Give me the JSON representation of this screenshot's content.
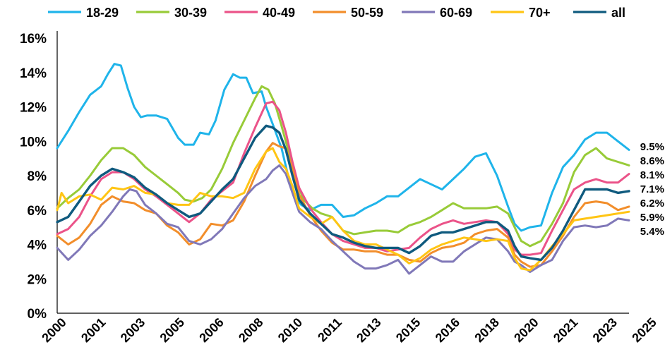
{
  "chart_data": {
    "type": "line",
    "title": "",
    "xlabel": "",
    "ylabel": "",
    "ylim": [
      0,
      16
    ],
    "xlim": [
      2000,
      2026
    ],
    "y_ticks": [
      "0%",
      "2%",
      "4%",
      "6%",
      "8%",
      "10%",
      "12%",
      "14%",
      "16%"
    ],
    "x_ticks": [
      "2000",
      "2001",
      "2003",
      "2005",
      "2006",
      "2008",
      "2010",
      "2011",
      "2013",
      "2015",
      "2016",
      "2018",
      "2020",
      "2021",
      "2023",
      "2025"
    ],
    "grid": false,
    "legend_position": "top",
    "series": [
      {
        "name": "18-29",
        "color": "#1fb4ea",
        "end_label": "9.5%",
        "x": [
          2000.0,
          2000.5,
          2001.0,
          2001.5,
          2002.0,
          2002.3,
          2002.6,
          2002.9,
          2003.2,
          2003.5,
          2003.8,
          2004.1,
          2004.5,
          2005.0,
          2005.5,
          2005.8,
          2006.2,
          2006.5,
          2006.9,
          2007.2,
          2007.6,
          2008.0,
          2008.3,
          2008.6,
          2008.9,
          2009.3,
          2009.5,
          2009.8,
          2010.2,
          2010.5,
          2010.8,
          2011.1,
          2011.5,
          2012.0,
          2012.5,
          2013.0,
          2013.5,
          2014.0,
          2014.5,
          2015.0,
          2015.5,
          2016.0,
          2016.5,
          2017.0,
          2017.5,
          2018.0,
          2018.5,
          2019.0,
          2019.5,
          2020.0,
          2020.5,
          2020.8,
          2021.1,
          2021.5,
          2022.0,
          2022.5,
          2023.0,
          2023.5,
          2024.0,
          2024.5,
          2025.0,
          2025.5,
          2026.0
        ],
        "y": [
          9.6,
          10.6,
          11.7,
          12.7,
          13.2,
          13.9,
          14.5,
          14.4,
          13.1,
          12.0,
          11.4,
          11.5,
          11.5,
          11.3,
          10.2,
          9.8,
          9.8,
          10.5,
          10.4,
          11.2,
          13.0,
          13.9,
          13.7,
          13.7,
          12.8,
          12.9,
          12.0,
          11.0,
          9.6,
          8.0,
          6.8,
          6.3,
          6.0,
          6.3,
          6.3,
          5.6,
          5.7,
          6.1,
          6.4,
          6.8,
          6.8,
          7.3,
          7.8,
          7.5,
          7.2,
          7.8,
          8.4,
          9.1,
          9.3,
          8.0,
          6.2,
          5.2,
          4.8,
          5.0,
          5.1,
          7.0,
          8.5,
          9.2,
          10.1,
          10.5,
          10.5,
          10.0,
          9.5
        ]
      },
      {
        "name": "30-39",
        "color": "#98cb38",
        "end_label": "8.6%",
        "x": [
          2000.0,
          2000.5,
          2001.0,
          2001.5,
          2002.0,
          2002.5,
          2003.0,
          2003.5,
          2004.0,
          2004.5,
          2005.0,
          2005.5,
          2005.8,
          2006.2,
          2006.6,
          2007.0,
          2007.5,
          2008.0,
          2008.5,
          2009.0,
          2009.3,
          2009.6,
          2009.9,
          2010.2,
          2010.5,
          2010.8,
          2011.2,
          2011.6,
          2012.0,
          2012.5,
          2013.0,
          2013.5,
          2014.0,
          2014.5,
          2015.0,
          2015.5,
          2016.0,
          2016.5,
          2017.0,
          2017.5,
          2018.0,
          2018.5,
          2019.0,
          2019.5,
          2020.0,
          2020.5,
          2020.8,
          2021.1,
          2021.5,
          2022.0,
          2022.5,
          2023.0,
          2023.5,
          2024.0,
          2024.5,
          2025.0,
          2025.5,
          2026.0
        ],
        "y": [
          6.1,
          6.7,
          7.2,
          8.0,
          8.9,
          9.6,
          9.6,
          9.2,
          8.5,
          8.0,
          7.5,
          7.0,
          6.6,
          6.5,
          6.7,
          7.2,
          8.4,
          9.9,
          11.2,
          12.5,
          13.2,
          13.0,
          12.2,
          10.9,
          9.5,
          8.0,
          6.6,
          6.1,
          5.8,
          5.6,
          4.8,
          4.6,
          4.7,
          4.8,
          4.8,
          4.7,
          5.1,
          5.3,
          5.6,
          6.0,
          6.4,
          6.1,
          6.1,
          6.1,
          6.2,
          5.8,
          5.0,
          4.2,
          3.9,
          4.2,
          5.2,
          6.4,
          8.2,
          9.2,
          9.6,
          9.0,
          8.8,
          8.6
        ]
      },
      {
        "name": "40-49",
        "color": "#eb5389",
        "end_label": "8.1%",
        "x": [
          2000.0,
          2000.5,
          2001.0,
          2001.5,
          2002.0,
          2002.5,
          2003.0,
          2003.5,
          2004.0,
          2004.5,
          2005.0,
          2005.5,
          2006.0,
          2006.5,
          2007.0,
          2007.5,
          2008.0,
          2008.5,
          2009.0,
          2009.5,
          2009.8,
          2010.1,
          2010.4,
          2010.7,
          2011.0,
          2011.5,
          2012.0,
          2012.5,
          2013.0,
          2013.5,
          2014.0,
          2014.5,
          2015.0,
          2015.5,
          2016.0,
          2016.5,
          2017.0,
          2017.5,
          2018.0,
          2018.5,
          2019.0,
          2019.5,
          2020.0,
          2020.5,
          2020.8,
          2021.1,
          2021.5,
          2022.0,
          2022.5,
          2023.0,
          2023.5,
          2024.0,
          2024.5,
          2025.0,
          2025.5,
          2026.0
        ],
        "y": [
          4.6,
          4.9,
          5.6,
          6.8,
          7.8,
          8.2,
          8.2,
          7.8,
          7.2,
          6.8,
          6.3,
          5.8,
          5.3,
          5.8,
          6.6,
          7.1,
          7.6,
          9.3,
          10.8,
          12.2,
          12.3,
          11.8,
          10.5,
          8.8,
          7.3,
          6.1,
          5.3,
          4.6,
          4.2,
          4.0,
          3.8,
          3.8,
          3.6,
          3.7,
          3.8,
          4.4,
          4.9,
          5.2,
          5.4,
          5.2,
          5.3,
          5.4,
          5.3,
          4.6,
          3.7,
          3.4,
          3.4,
          3.5,
          4.8,
          6.0,
          7.2,
          7.6,
          7.8,
          7.6,
          7.6,
          8.1
        ]
      },
      {
        "name": "50-59",
        "color": "#f28e2b",
        "end_label": "6.2%",
        "x": [
          2000.0,
          2000.5,
          2001.0,
          2001.5,
          2002.0,
          2002.5,
          2003.0,
          2003.5,
          2004.0,
          2004.5,
          2005.0,
          2005.5,
          2006.0,
          2006.5,
          2007.0,
          2007.5,
          2008.0,
          2008.5,
          2009.0,
          2009.5,
          2009.8,
          2010.1,
          2010.4,
          2010.7,
          2011.0,
          2011.5,
          2012.0,
          2012.5,
          2013.0,
          2013.5,
          2014.0,
          2014.5,
          2015.0,
          2015.5,
          2016.0,
          2016.5,
          2017.0,
          2017.5,
          2018.0,
          2018.5,
          2019.0,
          2019.5,
          2020.0,
          2020.5,
          2020.8,
          2021.1,
          2021.5,
          2022.0,
          2022.5,
          2023.0,
          2023.5,
          2024.0,
          2024.5,
          2025.0,
          2025.5,
          2026.0
        ],
        "y": [
          4.5,
          4.0,
          4.4,
          5.2,
          6.3,
          6.8,
          6.5,
          6.4,
          6.0,
          5.8,
          5.1,
          4.7,
          4.0,
          4.3,
          5.2,
          5.1,
          5.4,
          6.5,
          8.0,
          9.4,
          9.9,
          9.7,
          9.6,
          8.4,
          6.9,
          5.7,
          4.8,
          4.1,
          3.7,
          3.7,
          3.6,
          3.6,
          3.4,
          3.4,
          3.1,
          3.0,
          3.5,
          3.8,
          3.9,
          4.1,
          4.6,
          4.8,
          4.9,
          4.4,
          3.4,
          3.0,
          2.7,
          2.8,
          3.6,
          4.5,
          5.6,
          6.4,
          6.5,
          6.4,
          6.0,
          6.2
        ]
      },
      {
        "name": "60-69",
        "color": "#8078b8",
        "end_label": "5.4%",
        "x": [
          2000.0,
          2000.5,
          2001.0,
          2001.5,
          2002.0,
          2002.5,
          2003.0,
          2003.3,
          2003.6,
          2004.0,
          2004.5,
          2005.0,
          2005.5,
          2006.0,
          2006.5,
          2007.0,
          2007.5,
          2008.0,
          2008.5,
          2009.0,
          2009.5,
          2009.8,
          2010.1,
          2010.4,
          2010.7,
          2011.0,
          2011.5,
          2012.0,
          2012.5,
          2013.0,
          2013.5,
          2014.0,
          2014.5,
          2015.0,
          2015.5,
          2016.0,
          2016.5,
          2017.0,
          2017.5,
          2018.0,
          2018.5,
          2019.0,
          2019.5,
          2020.0,
          2020.5,
          2020.8,
          2021.1,
          2021.5,
          2022.0,
          2022.5,
          2023.0,
          2023.5,
          2024.0,
          2024.5,
          2025.0,
          2025.5,
          2026.0
        ],
        "y": [
          3.8,
          3.1,
          3.7,
          4.5,
          5.1,
          5.9,
          6.8,
          7.2,
          7.1,
          6.3,
          5.8,
          5.2,
          5.0,
          4.2,
          4.0,
          4.3,
          4.9,
          5.8,
          6.7,
          7.4,
          7.8,
          8.3,
          8.6,
          8.1,
          7.0,
          5.9,
          5.3,
          4.9,
          4.2,
          3.6,
          3.0,
          2.6,
          2.6,
          2.8,
          3.1,
          2.3,
          2.8,
          3.3,
          3.0,
          3.0,
          3.6,
          4.0,
          4.4,
          4.3,
          3.6,
          3.0,
          2.8,
          2.4,
          2.8,
          3.1,
          4.2,
          5.0,
          5.1,
          5.0,
          5.1,
          5.5,
          5.4
        ]
      },
      {
        "name": "70+",
        "color": "#ffc514",
        "end_label": "5.9%",
        "x": [
          2000.0,
          2000.2,
          2000.5,
          2001.0,
          2001.5,
          2002.0,
          2002.5,
          2003.0,
          2003.5,
          2004.0,
          2004.5,
          2005.0,
          2005.5,
          2006.0,
          2006.5,
          2007.0,
          2007.5,
          2008.0,
          2008.5,
          2009.0,
          2009.5,
          2009.8,
          2010.1,
          2010.4,
          2010.7,
          2011.0,
          2011.5,
          2012.0,
          2012.5,
          2013.0,
          2013.5,
          2014.0,
          2014.5,
          2015.0,
          2015.5,
          2016.0,
          2016.5,
          2017.0,
          2017.5,
          2018.0,
          2018.5,
          2019.0,
          2019.5,
          2020.0,
          2020.5,
          2020.8,
          2021.1,
          2021.5,
          2022.0,
          2022.5,
          2023.0,
          2023.5,
          2024.0,
          2024.5,
          2025.0,
          2025.5,
          2026.0
        ],
        "y": [
          6.0,
          7.0,
          6.4,
          6.8,
          6.9,
          6.6,
          7.3,
          7.2,
          7.4,
          7.0,
          6.9,
          6.4,
          6.3,
          6.3,
          7.0,
          6.8,
          6.8,
          6.7,
          7.0,
          8.4,
          9.4,
          9.6,
          8.8,
          8.4,
          7.4,
          6.1,
          5.6,
          5.2,
          5.6,
          4.8,
          4.2,
          4.0,
          4.0,
          3.7,
          3.4,
          2.9,
          3.2,
          3.7,
          4.0,
          4.2,
          4.4,
          4.3,
          4.2,
          4.3,
          4.2,
          3.2,
          2.6,
          2.5,
          3.1,
          3.9,
          4.6,
          5.4,
          5.5,
          5.6,
          5.7,
          5.8,
          5.9
        ]
      },
      {
        "name": "all",
        "color": "#0f5a7e",
        "end_label": "7.1%",
        "x": [
          2000.0,
          2000.5,
          2001.0,
          2001.5,
          2002.0,
          2002.5,
          2003.0,
          2003.5,
          2004.0,
          2004.5,
          2005.0,
          2005.5,
          2006.0,
          2006.5,
          2007.0,
          2007.5,
          2008.0,
          2008.5,
          2009.0,
          2009.5,
          2009.8,
          2010.1,
          2010.4,
          2010.7,
          2011.0,
          2011.5,
          2012.0,
          2012.5,
          2013.0,
          2013.5,
          2014.0,
          2014.5,
          2015.0,
          2015.5,
          2016.0,
          2016.5,
          2017.0,
          2017.5,
          2018.0,
          2018.5,
          2019.0,
          2019.5,
          2020.0,
          2020.5,
          2020.8,
          2021.1,
          2021.5,
          2022.0,
          2022.5,
          2023.0,
          2023.5,
          2024.0,
          2024.5,
          2025.0,
          2025.5,
          2026.0
        ],
        "y": [
          5.3,
          5.6,
          6.5,
          7.4,
          8.0,
          8.4,
          8.2,
          7.9,
          7.3,
          6.9,
          6.4,
          6.0,
          5.6,
          5.8,
          6.5,
          7.2,
          7.8,
          9.0,
          10.2,
          10.9,
          10.8,
          10.5,
          9.5,
          8.0,
          6.6,
          5.8,
          5.2,
          4.6,
          4.4,
          4.1,
          3.9,
          3.8,
          3.8,
          3.8,
          3.5,
          3.9,
          4.5,
          4.7,
          4.7,
          4.9,
          5.1,
          5.3,
          5.3,
          4.8,
          3.9,
          3.3,
          3.2,
          3.1,
          3.8,
          4.8,
          6.0,
          7.2,
          7.2,
          7.2,
          7.0,
          7.1
        ]
      }
    ]
  }
}
